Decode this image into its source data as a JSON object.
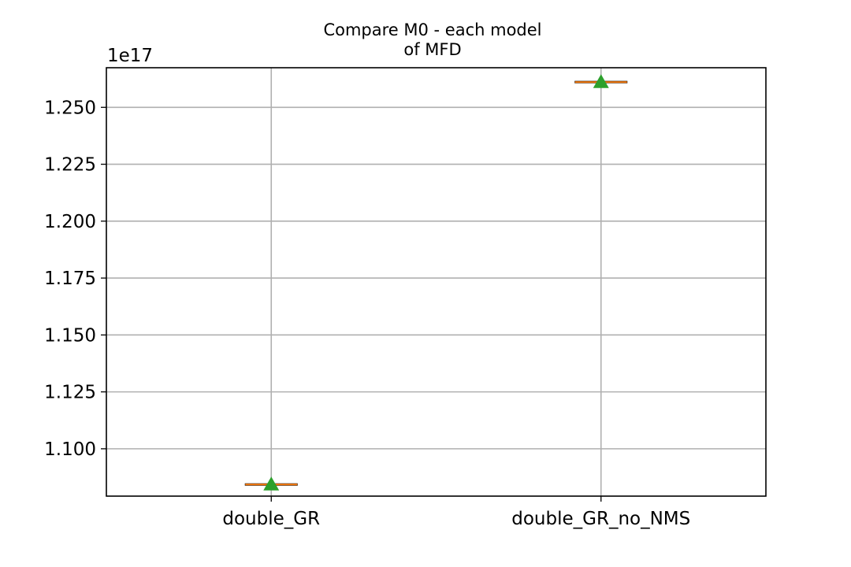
{
  "chart_data": {
    "type": "box",
    "title_lines": [
      "Compare M0 - each model",
      "of MFD"
    ],
    "xlabel": "",
    "ylabel": "",
    "y_offset_label": "1e17",
    "y_scale_factor": 1e+17,
    "categories": [
      "double_GR",
      "double_GR_no_NMS"
    ],
    "values": [
      1.0843e+17,
      1.2611e+17
    ],
    "means": [
      1.0843e+17,
      1.2611e+17
    ],
    "ylim": [
      1.0792e+17,
      1.2674e+17
    ],
    "y_ticks": [
      1.1e+17,
      1.125e+17,
      1.15e+17,
      1.175e+17,
      1.2e+17,
      1.225e+17,
      1.25e+17
    ],
    "y_tick_labels": [
      "1.100",
      "1.125",
      "1.150",
      "1.175",
      "1.200",
      "1.225",
      "1.250"
    ],
    "grid": true,
    "colors": {
      "median_line": "#ff7f0e",
      "box_edge": "#000000",
      "mean_marker": "#2ca02c",
      "grid": "#b0b0b0",
      "axes": "#000000"
    }
  }
}
